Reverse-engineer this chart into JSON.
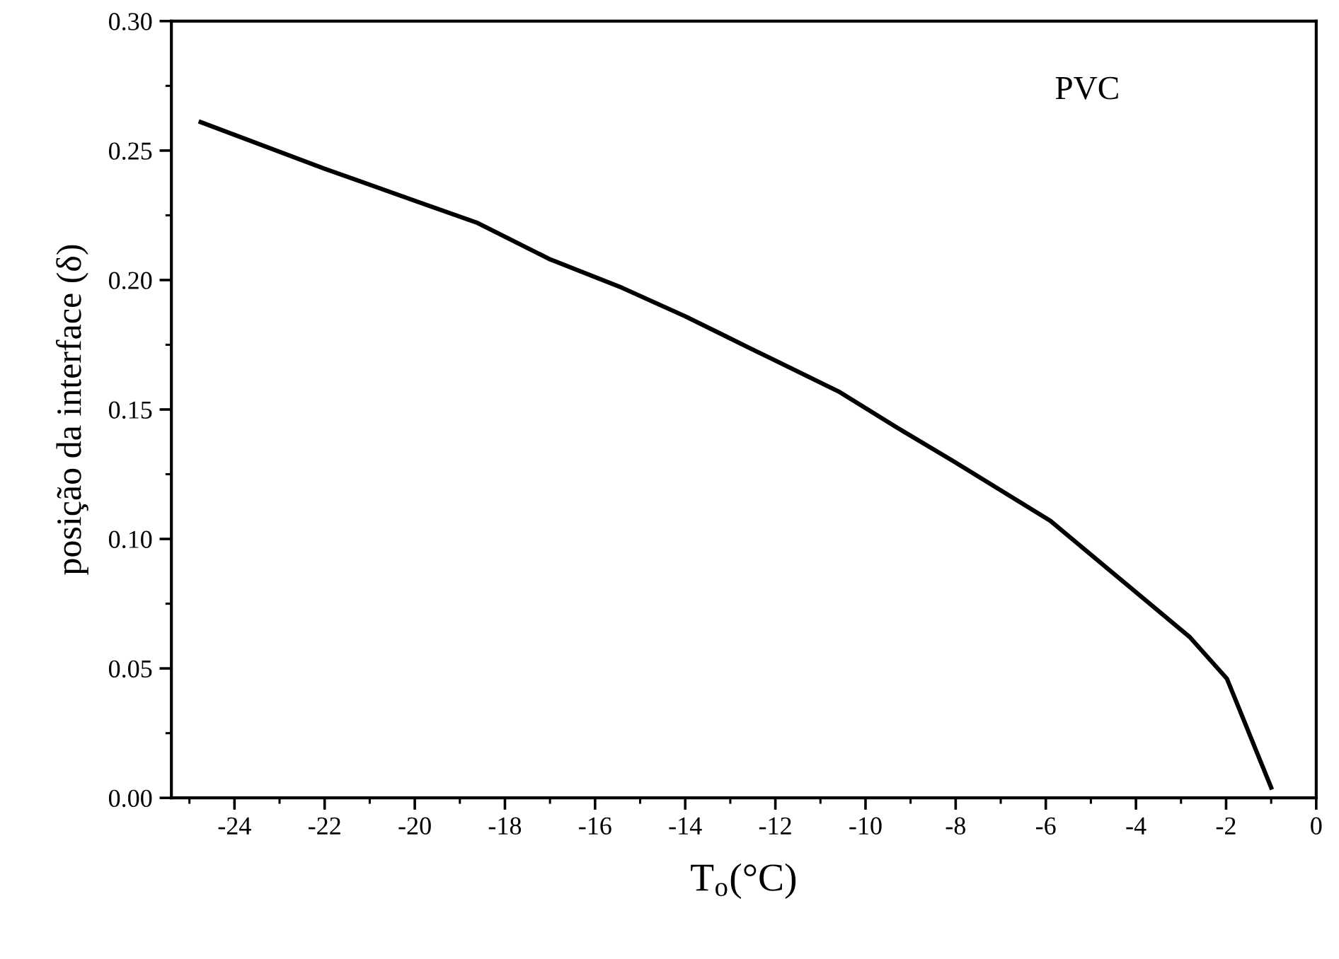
{
  "chart_data": {
    "type": "line",
    "x": [
      -24.75,
      -22.0,
      -19.9,
      -18.6,
      -17.0,
      -15.4,
      -14.0,
      -12.6,
      -10.6,
      -9.3,
      -8.05,
      -5.9,
      -3.83,
      -2.8,
      -1.98,
      -1.0
    ],
    "series": [
      {
        "color": "#000000",
        "values": [
          0.261,
          0.243,
          0.23,
          0.222,
          0.208,
          0.197,
          0.186,
          0.174,
          0.157,
          0.143,
          0.13,
          0.107,
          0.077,
          0.062,
          0.046,
          0.004
        ]
      }
    ],
    "xlabel": "T$_{o}$(°C)",
    "ylabel": "posição da interface (δ)",
    "annotations": [
      "PVC"
    ],
    "xlim": [
      -25.4,
      0
    ],
    "ylim": [
      0,
      0.3
    ],
    "xticks": [
      -24,
      -22,
      -20,
      -18,
      -16,
      -14,
      -12,
      -10,
      -8,
      -6,
      -4,
      -2,
      0
    ],
    "yticks": [
      {
        "value": 0,
        "label": "0.00"
      },
      {
        "value": 0.05,
        "label": "0.05"
      },
      {
        "value": 0.1,
        "label": "0.10"
      },
      {
        "value": 0.15,
        "label": "0.15"
      },
      {
        "value": 0.2,
        "label": "0.20"
      },
      {
        "value": 0.25,
        "label": "0.25"
      },
      {
        "value": 0.3,
        "label": "0.30"
      }
    ],
    "grid": false,
    "legend": false,
    "marker": "none",
    "line_style": "solid"
  }
}
